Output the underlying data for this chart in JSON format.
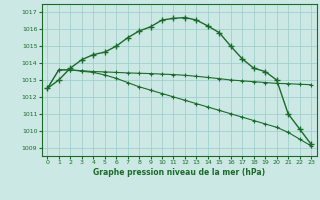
{
  "xlabel": "Graphe pression niveau de la mer (hPa)",
  "xlim": [
    -0.5,
    23.5
  ],
  "ylim": [
    1008.5,
    1017.5
  ],
  "yticks": [
    1009,
    1010,
    1011,
    1012,
    1013,
    1014,
    1015,
    1016,
    1017
  ],
  "xticks": [
    0,
    1,
    2,
    3,
    4,
    5,
    6,
    7,
    8,
    9,
    10,
    11,
    12,
    13,
    14,
    15,
    16,
    17,
    18,
    19,
    20,
    21,
    22,
    23
  ],
  "bg_color": "#cce8e4",
  "grid_color": "#99ccc8",
  "line_color": "#1a6b2a",
  "line1": [
    1012.5,
    1013.0,
    1013.7,
    1014.2,
    1014.5,
    1014.65,
    1015.0,
    1015.5,
    1015.9,
    1016.15,
    1016.55,
    1016.65,
    1016.7,
    1016.55,
    1016.2,
    1015.8,
    1015.0,
    1014.25,
    1013.7,
    1013.5,
    1013.0,
    1011.0,
    1010.1,
    1009.2
  ],
  "line2": [
    1012.5,
    1013.6,
    1013.6,
    1013.55,
    1013.5,
    1013.48,
    1013.45,
    1013.42,
    1013.4,
    1013.38,
    1013.35,
    1013.32,
    1013.28,
    1013.22,
    1013.15,
    1013.08,
    1013.0,
    1012.95,
    1012.9,
    1012.85,
    1012.8,
    1012.78,
    1012.75,
    1012.72
  ],
  "line3": [
    1012.5,
    1013.6,
    1013.6,
    1013.52,
    1013.45,
    1013.3,
    1013.1,
    1012.85,
    1012.6,
    1012.4,
    1012.2,
    1012.0,
    1011.8,
    1011.6,
    1011.4,
    1011.2,
    1011.0,
    1010.8,
    1010.6,
    1010.4,
    1010.2,
    1009.9,
    1009.5,
    1009.1
  ]
}
